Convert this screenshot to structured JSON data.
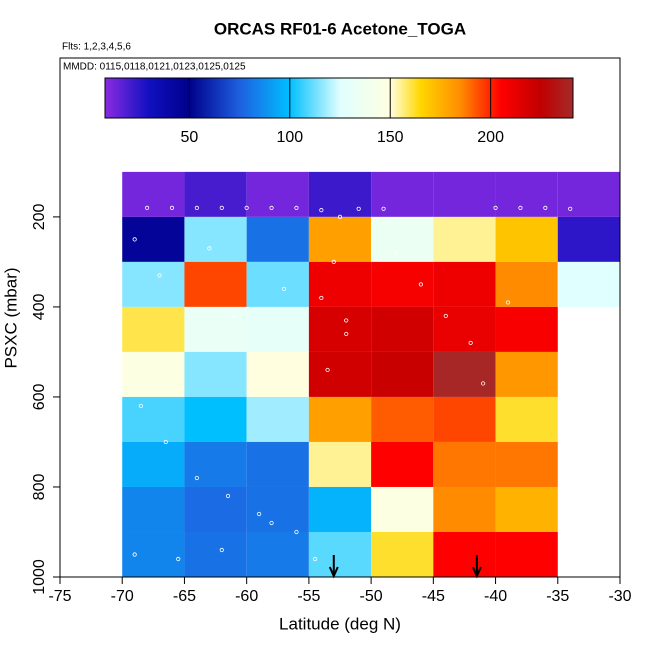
{
  "chart_data": {
    "type": "heatmap",
    "title": "ORCAS RF01-6 Acetone_TOGA",
    "subtitle": "Flts: 1,2,3,4,5,6",
    "annotation": "MMDD: 0115,0118,0121,0123,0125,0125",
    "xlabel": "Latitude (deg N)",
    "ylabel": "PSXC (mbar)",
    "xlim": [
      -75,
      -30
    ],
    "ylim": [
      1000,
      -153
    ],
    "xticks": [
      -75,
      -70,
      -65,
      -60,
      -55,
      -50,
      -45,
      -40,
      -35,
      -30
    ],
    "yticks": [
      200,
      400,
      600,
      800,
      1000
    ],
    "x_bins": [
      -70,
      -65,
      -60,
      -55,
      -50,
      -45,
      -40,
      -35,
      -30
    ],
    "y_bins": [
      100,
      200,
      300,
      400,
      500,
      600,
      700,
      800,
      900,
      1000
    ],
    "values": [
      [
        12,
        20,
        12,
        22,
        12,
        12,
        12,
        12
      ],
      [
        45,
        115,
        80,
        180,
        135,
        155,
        170,
        25
      ],
      [
        115,
        195,
        112,
        210,
        208,
        210,
        185,
        125
      ],
      [
        160,
        133,
        130,
        218,
        220,
        212,
        207,
        null
      ],
      [
        148,
        115,
        150,
        220,
        222,
        240,
        182,
        null
      ],
      [
        108,
        100,
        118,
        180,
        192,
        195,
        162,
        null
      ],
      [
        95,
        82,
        80,
        155,
        205,
        188,
        188,
        null
      ],
      [
        85,
        78,
        80,
        97,
        148,
        185,
        175,
        null
      ],
      [
        85,
        80,
        82,
        110,
        162,
        205,
        205,
        null
      ]
    ],
    "colorbar": {
      "clim": [
        8,
        241
      ],
      "ticks": [
        50,
        100,
        150,
        200
      ],
      "stops": [
        [
          8,
          "#8a2be2"
        ],
        [
          30,
          "#1010c0"
        ],
        [
          50,
          "#00008b"
        ],
        [
          75,
          "#1e5fe0"
        ],
        [
          100,
          "#00bfff"
        ],
        [
          125,
          "#e0ffff"
        ],
        [
          150,
          "#ffffe0"
        ],
        [
          165,
          "#ffd700"
        ],
        [
          185,
          "#ff8c00"
        ],
        [
          205,
          "#ff0000"
        ],
        [
          225,
          "#c00000"
        ],
        [
          241,
          "#a52a2a"
        ]
      ]
    },
    "points": {
      "color": "#ffffff",
      "x": [
        -68,
        -66,
        -64,
        -62,
        -60,
        -58,
        -56,
        -54,
        -52.5,
        -51,
        -49,
        -40,
        -38,
        -36,
        -34,
        -69,
        -67,
        -63,
        -61,
        -57,
        -54,
        -52,
        -53,
        -48,
        -46,
        -44,
        -42,
        -39,
        -68.5,
        -66.5,
        -64,
        -61.5,
        -59,
        -56,
        -53.5,
        -41,
        -69,
        -65.5,
        -62,
        -58,
        -54.5,
        -52
      ],
      "y": [
        180,
        180,
        180,
        180,
        180,
        180,
        180,
        185,
        200,
        182,
        182,
        180,
        180,
        180,
        182,
        250,
        330,
        270,
        420,
        360,
        380,
        430,
        300,
        280,
        350,
        420,
        480,
        390,
        620,
        700,
        780,
        820,
        860,
        900,
        540,
        570,
        950,
        960,
        940,
        880,
        960,
        460
      ]
    },
    "arrows_x": [
      -53,
      -41.5
    ]
  }
}
